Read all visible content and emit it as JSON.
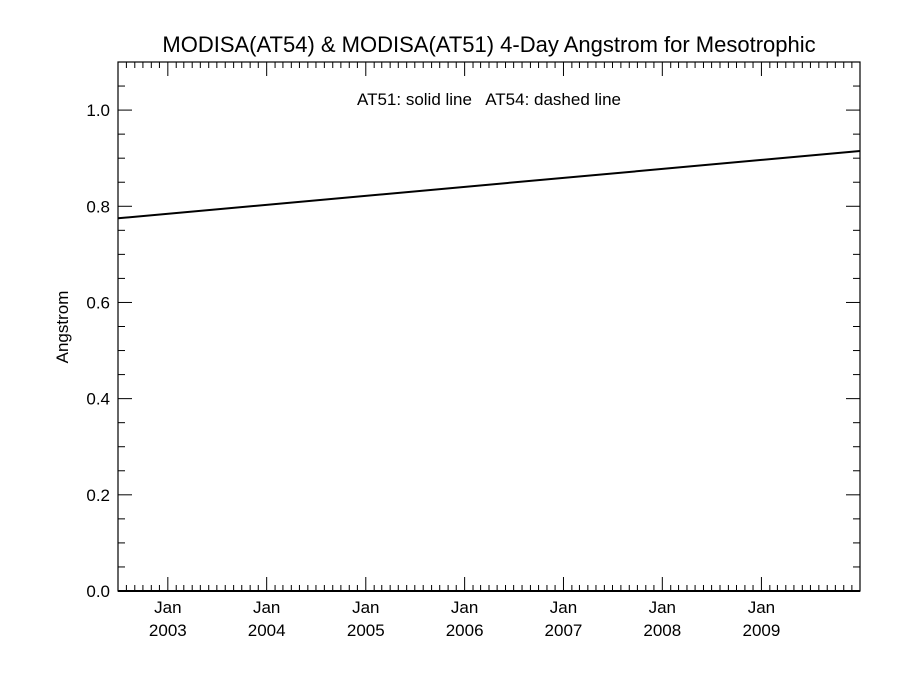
{
  "chart_data": {
    "type": "line",
    "title": "MODISA(AT54) & MODISA(AT51) 4-Day Angstrom for Mesotrophic",
    "xlabel": "",
    "ylabel": "Angstrom",
    "annotation": "AT51: solid line   AT54: dashed line",
    "xlim": [
      "2002-07-01",
      "2009-12-31"
    ],
    "ylim": [
      0.0,
      1.1
    ],
    "yticks": [
      {
        "value": 0.0,
        "label": "0.0"
      },
      {
        "value": 0.2,
        "label": "0.2"
      },
      {
        "value": 0.4,
        "label": "0.4"
      },
      {
        "value": 0.6,
        "label": "0.6"
      },
      {
        "value": 0.8,
        "label": "0.8"
      },
      {
        "value": 1.0,
        "label": "1.0"
      }
    ],
    "xticks": [
      {
        "date": "2003-01-01",
        "month": "Jan",
        "year": "2003"
      },
      {
        "date": "2004-01-01",
        "month": "Jan",
        "year": "2004"
      },
      {
        "date": "2005-01-01",
        "month": "Jan",
        "year": "2005"
      },
      {
        "date": "2006-01-01",
        "month": "Jan",
        "year": "2006"
      },
      {
        "date": "2007-01-01",
        "month": "Jan",
        "year": "2007"
      },
      {
        "date": "2008-01-01",
        "month": "Jan",
        "year": "2008"
      },
      {
        "date": "2009-01-01",
        "month": "Jan",
        "year": "2009"
      }
    ],
    "grid": false,
    "series": [
      {
        "name": "AT51",
        "style": "solid",
        "color": "#000000",
        "x": [
          "2002-07-01",
          "2009-12-31"
        ],
        "y": [
          0.775,
          0.915
        ]
      }
    ]
  }
}
